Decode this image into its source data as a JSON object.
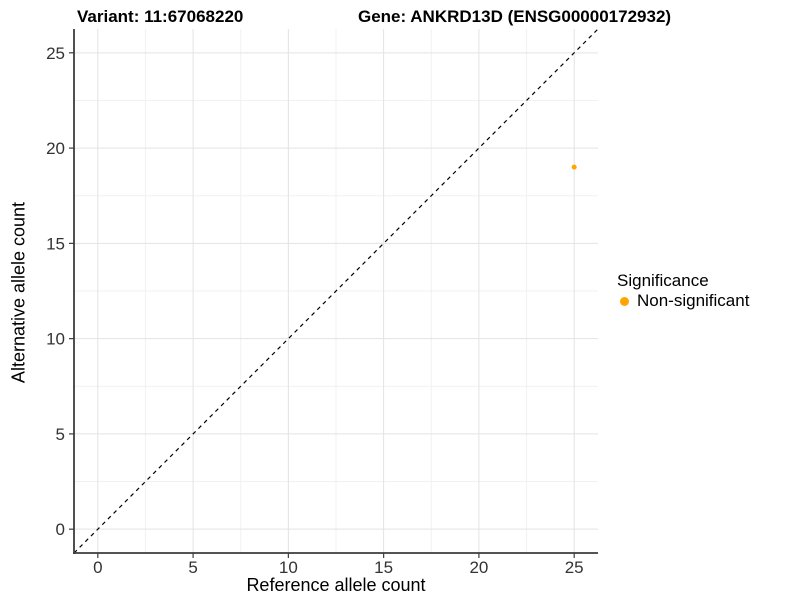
{
  "titles": {
    "variant": "Variant: 11:67068220",
    "gene": "Gene: ANKRD13D (ENSG00000172932)"
  },
  "chart_data": {
    "type": "scatter",
    "title_left": "Variant: 11:67068220",
    "title_right": "Gene: ANKRD13D (ENSG00000172932)",
    "xlabel": "Reference allele count",
    "ylabel": "Alternative allele count",
    "xlim": [
      -1.25,
      26.25
    ],
    "ylim": [
      -1.25,
      26.25
    ],
    "x_ticks": [
      0,
      5,
      10,
      15,
      20,
      25
    ],
    "y_ticks": [
      0,
      5,
      10,
      15,
      20,
      25
    ],
    "x_minor_ticks": [
      2.5,
      7.5,
      12.5,
      17.5,
      22.5
    ],
    "y_minor_ticks": [
      2.5,
      7.5,
      12.5,
      17.5,
      22.5
    ],
    "grid": true,
    "reference_line": {
      "type": "identity",
      "style": "dashed",
      "color": "#000000"
    },
    "series": [
      {
        "name": "Non-significant",
        "color": "#FFA500",
        "points": [
          {
            "x": 25,
            "y": 19
          }
        ]
      }
    ],
    "legend": {
      "title": "Significance",
      "position": "right",
      "items": [
        {
          "label": "Non-significant",
          "color": "#FFA500"
        }
      ]
    },
    "style_colors": {
      "grid_major": "#E3E3E3",
      "grid_minor": "#F1F1F1",
      "axis_line": "#3C3C3C",
      "tick_label": "#333333"
    }
  }
}
